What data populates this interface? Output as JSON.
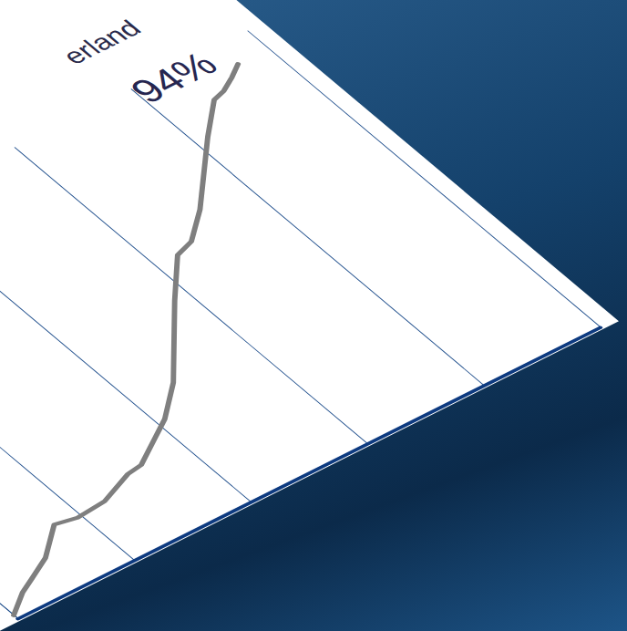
{
  "chart_data": {
    "type": "line",
    "title": "erland",
    "x": [
      0,
      0.195,
      0.33,
      0.54,
      0.8,
      0.97,
      1.22,
      1.52,
      1.65,
      1.9,
      2.07,
      2.35,
      2.88,
      3.19,
      3.35,
      3.6,
      4.11,
      4.38,
      4.49,
      4.62,
      4.74
    ],
    "values": [
      1.2,
      5.1,
      7.0,
      10.0,
      16.1,
      15.1,
      15.7,
      19.0,
      19.5,
      23.8,
      26.7,
      33.5,
      50.6,
      60.0,
      61.4,
      67.2,
      81.8,
      88.9,
      89.8,
      91.8,
      94.0
    ],
    "color": "#7f7f7f",
    "xlim": [
      0,
      5
    ],
    "xticks": [
      0,
      1,
      2,
      3,
      4,
      5
    ],
    "ylim": [
      0,
      100
    ],
    "grid": true,
    "tick_labels": false,
    "annotations": [
      {
        "text": "94%",
        "x": 4.74,
        "y": 94
      }
    ]
  }
}
